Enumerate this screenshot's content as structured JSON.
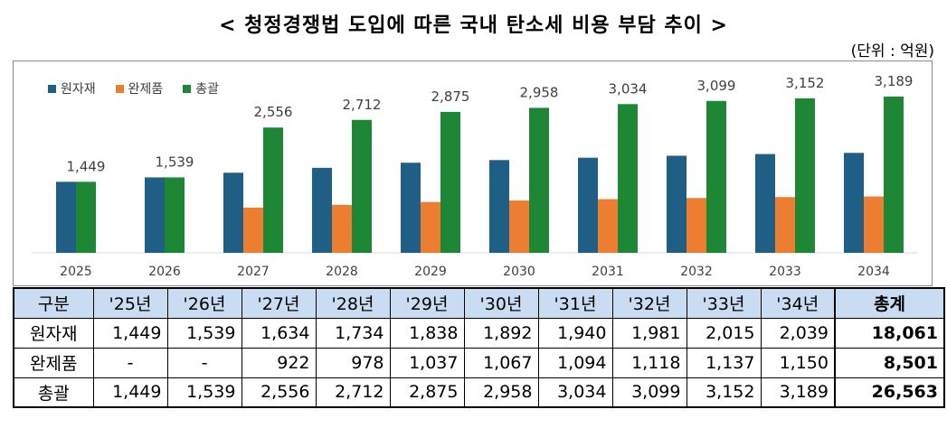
{
  "page_title": "< 청정경쟁법 도입에 따른 국내 탄소세 비용 부담 추이 >",
  "unit_label": "(단위 : 억원)",
  "colors": {
    "원자재": "#1f5f86",
    "완제품": "#ed7d31",
    "총괄": "#1e8736"
  },
  "chart_data": {
    "type": "bar",
    "categories": [
      "2025",
      "2026",
      "2027",
      "2028",
      "2029",
      "2030",
      "2031",
      "2032",
      "2033",
      "2034"
    ],
    "series": [
      {
        "name": "원자재",
        "values": [
          1449,
          1539,
          1634,
          1734,
          1838,
          1892,
          1940,
          1981,
          2015,
          2039
        ]
      },
      {
        "name": "완제품",
        "values": [
          null,
          null,
          922,
          978,
          1037,
          1067,
          1094,
          1118,
          1137,
          1150
        ]
      },
      {
        "name": "총괄",
        "values": [
          1449,
          1539,
          2556,
          2712,
          2875,
          2958,
          3034,
          3099,
          3152,
          3189
        ]
      }
    ],
    "data_labels": [
      "1,449",
      "1,539",
      "2,556",
      "2,712",
      "2,875",
      "2,958",
      "3,034",
      "3,099",
      "3,152",
      "3,189"
    ],
    "ylim": [
      0,
      3500
    ],
    "grid": false,
    "legend_position": "top-left"
  },
  "table": {
    "headers": [
      "구분",
      "'25년",
      "'26년",
      "'27년",
      "'28년",
      "'29년",
      "'30년",
      "'31년",
      "'32년",
      "'33년",
      "'34년",
      "총계"
    ],
    "rows": [
      [
        "원자재",
        "1,449",
        "1,539",
        "1,634",
        "1,734",
        "1,838",
        "1,892",
        "1,940",
        "1,981",
        "2,015",
        "2,039",
        "18,061"
      ],
      [
        "완제품",
        "-",
        "-",
        "922",
        "978",
        "1,037",
        "1,067",
        "1,094",
        "1,118",
        "1,137",
        "1,150",
        "8,501"
      ],
      [
        "총괄",
        "1,449",
        "1,539",
        "2,556",
        "2,712",
        "2,875",
        "2,958",
        "3,034",
        "3,099",
        "3,152",
        "3,189",
        "26,563"
      ]
    ]
  }
}
